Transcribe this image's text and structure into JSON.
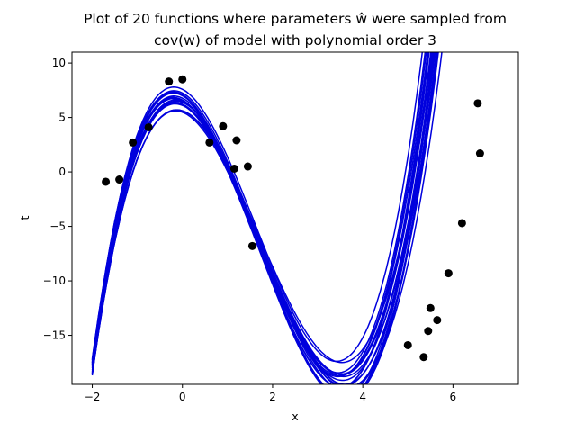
{
  "chart_data": {
    "type": "line",
    "title_line1": "Plot of 20 functions where parameters ŵ were sampled from",
    "title_line2": "cov(w) of model with polynomial order 3",
    "xlabel": "x",
    "ylabel": "t",
    "xlim": [
      -2.45,
      7.45
    ],
    "ylim": [
      -19.5,
      11
    ],
    "xticks": [
      -2,
      0,
      2,
      4,
      6
    ],
    "xtick_labels": [
      "−2",
      "0",
      "2",
      "4",
      "6"
    ],
    "yticks": [
      -15,
      -10,
      -5,
      0,
      5,
      10
    ],
    "ytick_labels": [
      "−15",
      "−10",
      "−5",
      "0",
      "5",
      "10"
    ],
    "grid": false,
    "curve_color": "#0000dd",
    "point_color": "#000000",
    "curve_x_range": [
      -2,
      7
    ],
    "curves": {
      "count": 20,
      "description": "cubic polynomials t = c3*x^3 + c2*x^2 + c1*x + c0",
      "mean_coefficients": [
        6.5,
        -1.87,
        -5.06,
        1.0
      ],
      "coefficient_order": "c0, c1, c2, c3"
    },
    "points": [
      {
        "x": -1.7,
        "y": -0.9
      },
      {
        "x": -1.4,
        "y": -0.7
      },
      {
        "x": -1.1,
        "y": 2.7
      },
      {
        "x": -0.75,
        "y": 4.1
      },
      {
        "x": -0.3,
        "y": 8.3
      },
      {
        "x": 0.0,
        "y": 8.5
      },
      {
        "x": 0.6,
        "y": 2.7
      },
      {
        "x": 0.9,
        "y": 4.2
      },
      {
        "x": 1.15,
        "y": 0.3
      },
      {
        "x": 1.2,
        "y": 2.9
      },
      {
        "x": 1.45,
        "y": 0.5
      },
      {
        "x": 1.55,
        "y": -6.8
      },
      {
        "x": 5.0,
        "y": -15.9
      },
      {
        "x": 5.35,
        "y": -17.0
      },
      {
        "x": 5.45,
        "y": -14.6
      },
      {
        "x": 5.5,
        "y": -12.5
      },
      {
        "x": 5.65,
        "y": -13.6
      },
      {
        "x": 5.9,
        "y": -9.3
      },
      {
        "x": 6.2,
        "y": -4.7
      },
      {
        "x": 6.55,
        "y": 6.3
      },
      {
        "x": 6.6,
        "y": 1.7
      }
    ]
  }
}
